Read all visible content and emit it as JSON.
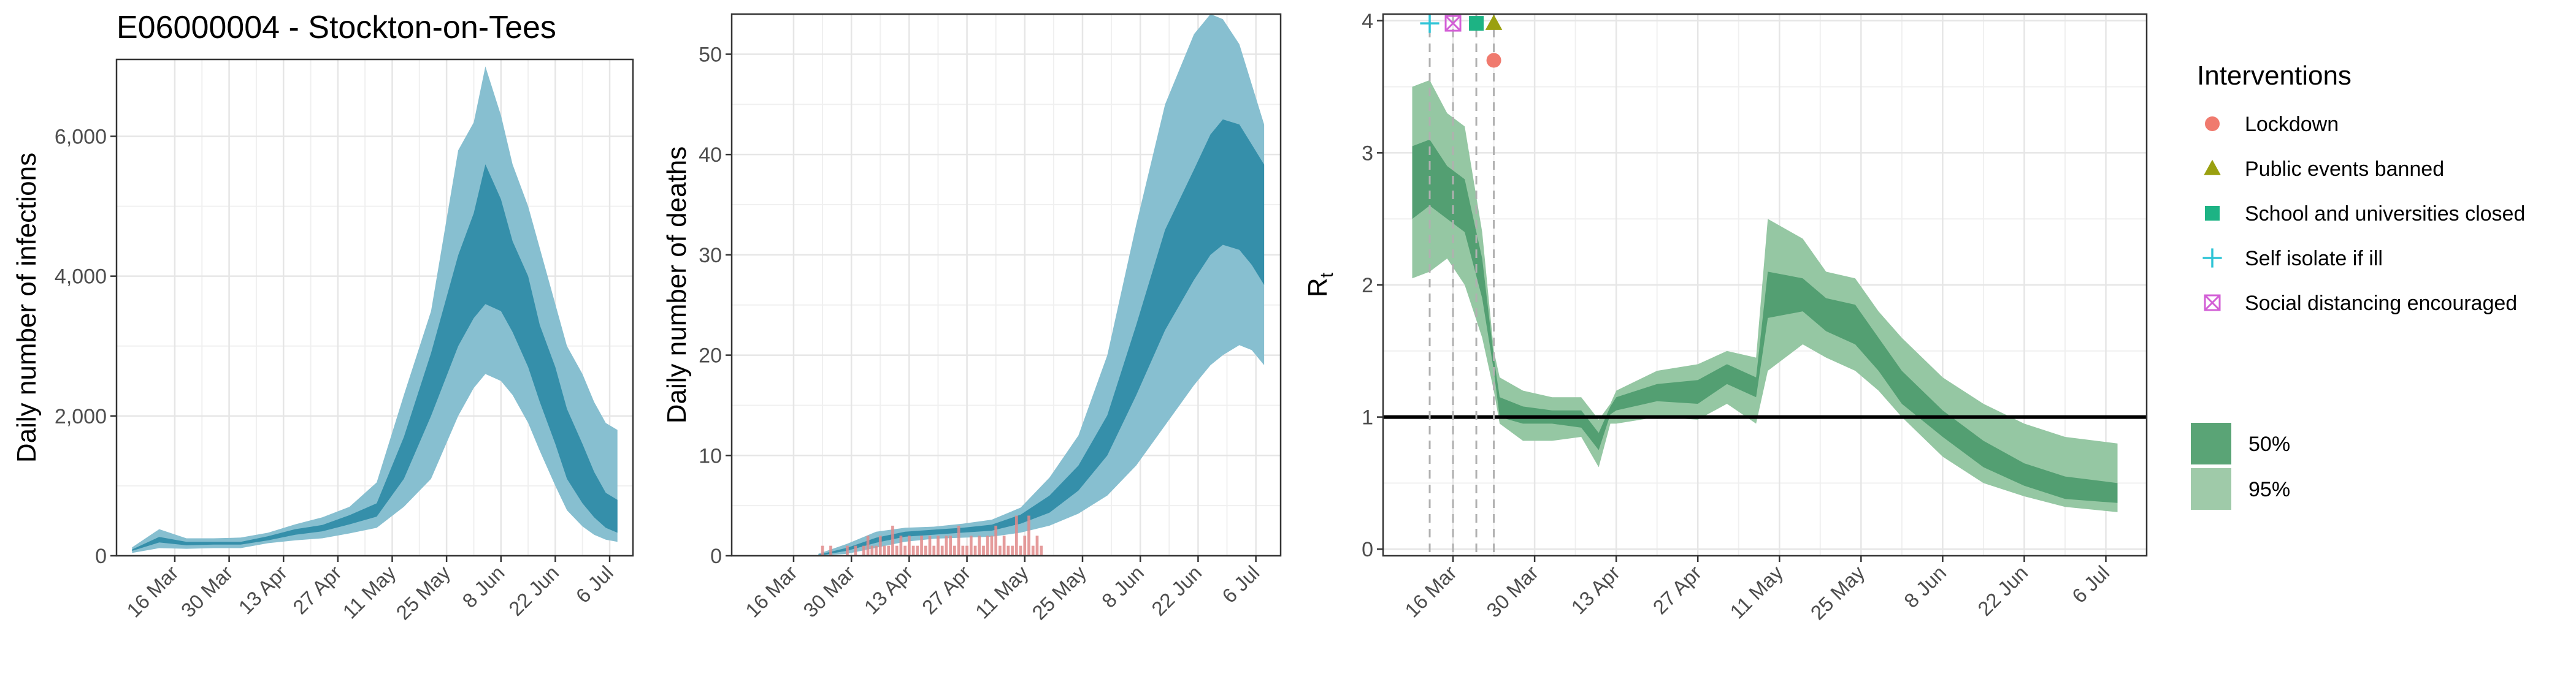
{
  "title": "E06000004 - Stockton-on-Tees",
  "colors": {
    "ribbon_inner": "#2e8ba6",
    "ribbon_outer": "#87bfd0",
    "rt_inner": "#4d9b6e",
    "rt_outer": "#95c7a3",
    "observed_deaths": "#e08a8a",
    "lockdown": "#f07a6e",
    "public_events": "#9aa010",
    "schools": "#1db384",
    "self_isolate": "#2fc4d6",
    "social_distancing": "#d35fd6"
  },
  "chart_data": [
    {
      "type": "area",
      "id": "infections",
      "title": "E06000004 - Stockton-on-Tees",
      "ylabel": "Daily number of infections",
      "xlabel": "",
      "x_ticks": [
        "16 Mar",
        "30 Mar",
        "13 Apr",
        "27 Apr",
        "11 May",
        "25 May",
        "8 Jun",
        "22 Jun",
        "6 Jul"
      ],
      "x_range": [
        "2020-03-01",
        "2020-07-12"
      ],
      "ylim": [
        0,
        7100
      ],
      "y_ticks": [
        0,
        2000,
        4000,
        6000
      ],
      "y_tick_labels": [
        "0",
        "2,000",
        "4,000",
        "6,000"
      ],
      "grid": true,
      "x": [
        "2020-03-05",
        "2020-03-12",
        "2020-03-19",
        "2020-03-26",
        "2020-04-02",
        "2020-04-09",
        "2020-04-16",
        "2020-04-23",
        "2020-04-30",
        "2020-05-07",
        "2020-05-14",
        "2020-05-21",
        "2020-05-28",
        "2020-06-01",
        "2020-06-04",
        "2020-06-08",
        "2020-06-11",
        "2020-06-15",
        "2020-06-18",
        "2020-06-22",
        "2020-06-25",
        "2020-06-29",
        "2020-07-02",
        "2020-07-05",
        "2020-07-08"
      ],
      "series": [
        {
          "name": "95%",
          "lower": [
            40,
            110,
            100,
            110,
            110,
            180,
            220,
            250,
            320,
            400,
            700,
            1100,
            2000,
            2400,
            2600,
            2500,
            2300,
            1900,
            1500,
            1000,
            650,
            420,
            300,
            230,
            200
          ],
          "upper": [
            120,
            380,
            250,
            250,
            260,
            330,
            450,
            550,
            700,
            1050,
            2300,
            3500,
            5800,
            6200,
            7000,
            6300,
            5600,
            5000,
            4400,
            3600,
            3000,
            2600,
            2200,
            1900,
            1800
          ]
        },
        {
          "name": "50%",
          "lower": [
            70,
            190,
            150,
            160,
            160,
            220,
            300,
            350,
            450,
            560,
            1100,
            2000,
            3000,
            3400,
            3600,
            3500,
            3200,
            2700,
            2200,
            1600,
            1100,
            750,
            550,
            400,
            330
          ],
          "upper": [
            90,
            270,
            200,
            200,
            200,
            280,
            380,
            440,
            580,
            750,
            1700,
            2900,
            4300,
            4900,
            5600,
            5100,
            4500,
            4000,
            3300,
            2700,
            2100,
            1600,
            1200,
            900,
            800
          ]
        }
      ]
    },
    {
      "type": "area",
      "id": "deaths",
      "title": "",
      "ylabel": "Daily number of deaths",
      "xlabel": "",
      "x_ticks": [
        "16 Mar",
        "30 Mar",
        "13 Apr",
        "27 Apr",
        "11 May",
        "25 May",
        "8 Jun",
        "22 Jun",
        "6 Jul"
      ],
      "x_range": [
        "2020-03-01",
        "2020-07-12"
      ],
      "ylim": [
        0,
        54
      ],
      "y_ticks": [
        0,
        10,
        20,
        30,
        40,
        50
      ],
      "y_tick_labels": [
        "0",
        "10",
        "20",
        "30",
        "40",
        "50"
      ],
      "grid": true,
      "x": [
        "2020-03-22",
        "2020-03-29",
        "2020-04-05",
        "2020-04-12",
        "2020-04-19",
        "2020-04-26",
        "2020-05-03",
        "2020-05-10",
        "2020-05-17",
        "2020-05-24",
        "2020-05-31",
        "2020-06-07",
        "2020-06-14",
        "2020-06-21",
        "2020-06-25",
        "2020-06-28",
        "2020-07-02",
        "2020-07-05",
        "2020-07-08"
      ],
      "series": [
        {
          "name": "95%",
          "lower": [
            0,
            0.2,
            0.8,
            1.4,
            1.7,
            1.8,
            1.9,
            2.3,
            3.0,
            4.2,
            6.0,
            9.0,
            13.0,
            17.0,
            19.0,
            20.0,
            21.0,
            20.5,
            19.0
          ],
          "upper": [
            0.2,
            1.2,
            2.4,
            2.8,
            2.9,
            3.2,
            3.6,
            4.8,
            7.8,
            12.0,
            20.0,
            33.0,
            45.0,
            52.0,
            54.0,
            53.5,
            51.0,
            47.0,
            43.0
          ]
        },
        {
          "name": "50%",
          "lower": [
            0,
            0.5,
            1.3,
            1.9,
            2.1,
            2.3,
            2.5,
            3.2,
            4.3,
            6.5,
            10.0,
            16.0,
            22.5,
            27.5,
            30.0,
            31.0,
            30.5,
            29.0,
            27.0
          ],
          "upper": [
            0.1,
            0.8,
            1.8,
            2.4,
            2.6,
            2.8,
            3.1,
            4.1,
            6.0,
            9.0,
            14.0,
            23.0,
            32.5,
            38.5,
            42.0,
            43.5,
            43.0,
            41.0,
            39.0
          ]
        }
      ],
      "observed": {
        "name": "observed deaths",
        "x": [
          "2020-03-23",
          "2020-03-25",
          "2020-03-29",
          "2020-03-31",
          "2020-04-02",
          "2020-04-03",
          "2020-04-04",
          "2020-04-05",
          "2020-04-06",
          "2020-04-07",
          "2020-04-08",
          "2020-04-09",
          "2020-04-10",
          "2020-04-11",
          "2020-04-12",
          "2020-04-13",
          "2020-04-14",
          "2020-04-15",
          "2020-04-16",
          "2020-04-17",
          "2020-04-18",
          "2020-04-19",
          "2020-04-20",
          "2020-04-21",
          "2020-04-22",
          "2020-04-23",
          "2020-04-24",
          "2020-04-25",
          "2020-04-26",
          "2020-04-27",
          "2020-04-28",
          "2020-04-29",
          "2020-04-30",
          "2020-05-01",
          "2020-05-02",
          "2020-05-03",
          "2020-05-04",
          "2020-05-05",
          "2020-05-06",
          "2020-05-07",
          "2020-05-08",
          "2020-05-09",
          "2020-05-10",
          "2020-05-11",
          "2020-05-12",
          "2020-05-13",
          "2020-05-14",
          "2020-05-15"
        ],
        "values": [
          1,
          1,
          1,
          1,
          1,
          2,
          1,
          1,
          2,
          1,
          1,
          3,
          1,
          2,
          1,
          2,
          1,
          1,
          2,
          1,
          2,
          1,
          2,
          1,
          2,
          2,
          1,
          3,
          1,
          1,
          2,
          1,
          2,
          1,
          2,
          2,
          3,
          1,
          2,
          1,
          1,
          4,
          1,
          2,
          4,
          1,
          2,
          1
        ]
      }
    },
    {
      "type": "area",
      "id": "rt",
      "title": "",
      "ylabel": "R",
      "ylabel_subscript": "t",
      "xlabel": "",
      "x_ticks": [
        "16 Mar",
        "30 Mar",
        "13 Apr",
        "27 Apr",
        "11 May",
        "25 May",
        "8 Jun",
        "22 Jun",
        "6 Jul"
      ],
      "x_range": [
        "2020-03-04",
        "2020-07-13"
      ],
      "ylim": [
        -0.05,
        4.05
      ],
      "y_ticks": [
        0,
        1,
        2,
        3,
        4
      ],
      "y_tick_labels": [
        "0",
        "1",
        "2",
        "3",
        "4"
      ],
      "grid": true,
      "reference_line": 1,
      "x": [
        "2020-03-09",
        "2020-03-12",
        "2020-03-15",
        "2020-03-18",
        "2020-03-21",
        "2020-03-23",
        "2020-03-24",
        "2020-03-28",
        "2020-04-02",
        "2020-04-07",
        "2020-04-10",
        "2020-04-12",
        "2020-04-13",
        "2020-04-20",
        "2020-04-27",
        "2020-05-02",
        "2020-05-07",
        "2020-05-09",
        "2020-05-15",
        "2020-05-19",
        "2020-05-24",
        "2020-05-28",
        "2020-06-01",
        "2020-06-08",
        "2020-06-15",
        "2020-06-22",
        "2020-06-29",
        "2020-07-08"
      ],
      "series": [
        {
          "name": "95%",
          "lower": [
            2.05,
            2.1,
            2.2,
            2.0,
            1.6,
            1.2,
            0.95,
            0.82,
            0.82,
            0.85,
            0.62,
            0.95,
            0.95,
            1.0,
            0.98,
            1.1,
            0.95,
            1.35,
            1.55,
            1.45,
            1.35,
            1.2,
            1.0,
            0.7,
            0.5,
            0.4,
            0.32,
            0.28
          ],
          "upper": [
            3.5,
            3.55,
            3.3,
            3.2,
            2.4,
            1.5,
            1.3,
            1.2,
            1.15,
            1.15,
            0.98,
            1.1,
            1.2,
            1.35,
            1.4,
            1.5,
            1.45,
            2.5,
            2.35,
            2.1,
            2.05,
            1.8,
            1.6,
            1.3,
            1.1,
            0.95,
            0.85,
            0.8
          ]
        },
        {
          "name": "50%",
          "lower": [
            2.5,
            2.6,
            2.5,
            2.4,
            1.9,
            1.35,
            1.0,
            0.95,
            0.95,
            0.92,
            0.75,
            1.02,
            1.05,
            1.12,
            1.1,
            1.25,
            1.15,
            1.75,
            1.8,
            1.65,
            1.55,
            1.35,
            1.1,
            0.85,
            0.62,
            0.48,
            0.38,
            0.35
          ],
          "upper": [
            3.05,
            3.1,
            2.9,
            2.8,
            2.2,
            1.45,
            1.15,
            1.08,
            1.05,
            1.05,
            0.88,
            1.08,
            1.15,
            1.25,
            1.28,
            1.4,
            1.3,
            2.1,
            2.05,
            1.9,
            1.85,
            1.6,
            1.35,
            1.05,
            0.82,
            0.65,
            0.55,
            0.5
          ]
        }
      ],
      "interventions": [
        {
          "name": "Self isolate if ill",
          "date": "2020-03-12",
          "marker": "plus",
          "y": 3.98
        },
        {
          "name": "Social distancing encouraged",
          "date": "2020-03-16",
          "marker": "square-x",
          "y": 3.98
        },
        {
          "name": "School and universities closed",
          "date": "2020-03-20",
          "marker": "square",
          "y": 3.98
        },
        {
          "name": "Public events banned",
          "date": "2020-03-23",
          "marker": "triangle",
          "y": 3.98
        },
        {
          "name": "Lockdown",
          "date": "2020-03-23",
          "marker": "circle",
          "y": 3.7
        }
      ]
    }
  ],
  "legend": {
    "title": "Interventions",
    "items": [
      {
        "label": "Lockdown",
        "marker": "circle",
        "color": "#f07a6e"
      },
      {
        "label": "Public events banned",
        "marker": "triangle",
        "color": "#9aa010"
      },
      {
        "label": "School and universities closed",
        "marker": "square",
        "color": "#1db384"
      },
      {
        "label": "Self isolate if ill",
        "marker": "plus",
        "color": "#2fc4d6"
      },
      {
        "label": "Social distancing encouraged",
        "marker": "square-x",
        "color": "#d35fd6"
      }
    ],
    "bands": [
      {
        "label": "50%",
        "color": "#5aa476"
      },
      {
        "label": "95%",
        "color": "#9fcaa9"
      }
    ]
  }
}
